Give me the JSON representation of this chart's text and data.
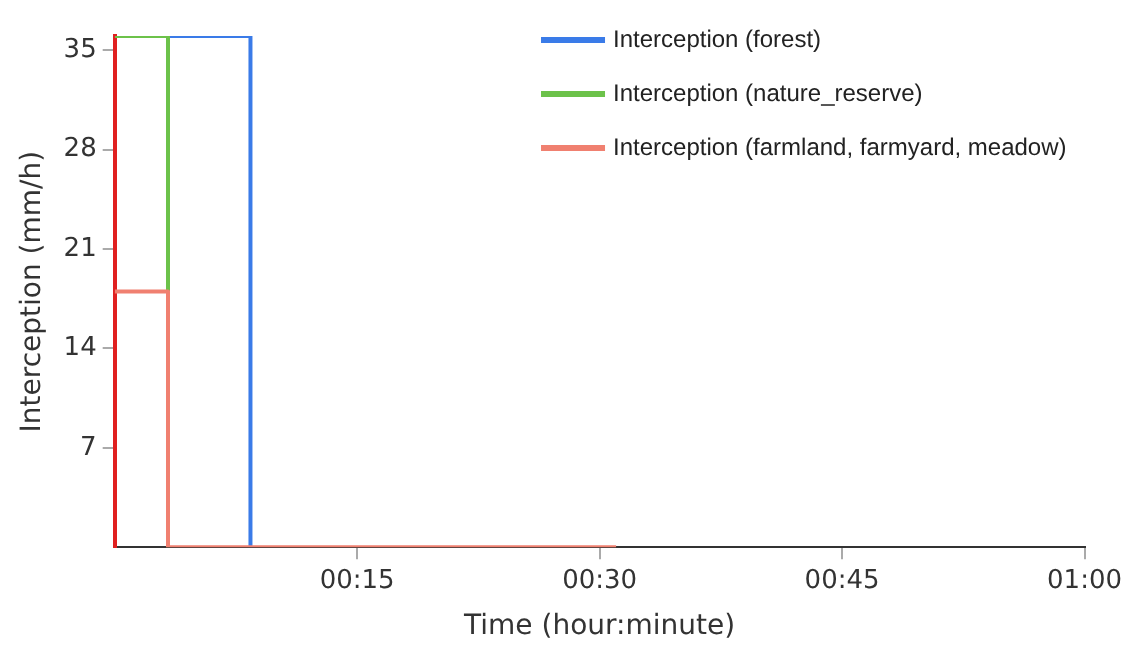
{
  "chart_data": {
    "type": "step",
    "xlabel": "Time (hour:minute)",
    "ylabel": "Interception (mm/h)",
    "series": [
      {
        "name": "Interception (forest)",
        "color": "#3a7be8",
        "x": [
          0.055,
          0.14
        ],
        "values": [
          36,
          0
        ]
      },
      {
        "name": "Interception (nature_reserve)",
        "color": "#6cc24a",
        "x": [
          0,
          0.055
        ],
        "values": [
          36,
          0
        ]
      },
      {
        "name": "Interception (farmland, farmyard, meadow)",
        "color": "#f08070",
        "x": [
          0,
          0.055,
          0.517
        ],
        "values": [
          18,
          0,
          0
        ]
      }
    ],
    "xlim": [
      0,
      1
    ],
    "xticks": [
      {
        "value": 0.25,
        "label": "00:15"
      },
      {
        "value": 0.5,
        "label": "00:30"
      },
      {
        "value": 0.75,
        "label": "00:45"
      },
      {
        "value": 1,
        "label": "01:00"
      }
    ],
    "ylim": [
      0,
      36
    ],
    "yticks": [
      7,
      14,
      21,
      28,
      35
    ],
    "grid": false,
    "legend": "top right",
    "marker": "none",
    "line_style": "solid"
  }
}
